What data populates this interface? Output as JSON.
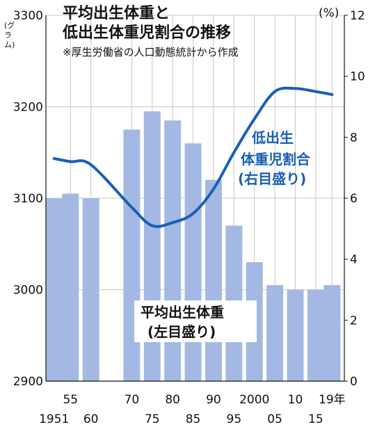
{
  "title": {
    "line1": "平均出生体重と",
    "line2": "低出生体重児割合の推移",
    "subtitle": "※厚生労働省の人口動態統計から作成"
  },
  "chart_data": {
    "type": "bar+line",
    "x_labels_top": [
      "55",
      "70",
      "80",
      "90",
      "2000",
      "10",
      "19年"
    ],
    "x_labels_bottom": [
      "1951",
      "60",
      "75",
      "85",
      "95",
      "05",
      "15"
    ],
    "left_axis": {
      "unit_label": "(グラム)",
      "ylim": [
        2900,
        3300
      ],
      "ticks": [
        "2900",
        "3000",
        "3100",
        "3200",
        "3300"
      ]
    },
    "right_axis": {
      "unit_label": "(%)",
      "ylim": [
        0,
        12
      ],
      "ticks": [
        "0",
        "2",
        "4",
        "6",
        "8",
        "10",
        "12"
      ]
    },
    "grid": true,
    "series": [
      {
        "name": "平均出生体重(左目盛り)",
        "type": "bar",
        "axis": "left",
        "color": "#a3b9e3",
        "points": [
          {
            "x": 1951,
            "y": 3100
          },
          {
            "x": 1955,
            "y": 3105
          },
          {
            "x": 1960,
            "y": 3100
          },
          {
            "x": 1970,
            "y": 3175
          },
          {
            "x": 1975,
            "y": 3195
          },
          {
            "x": 1980,
            "y": 3185
          },
          {
            "x": 1985,
            "y": 3160
          },
          {
            "x": 1990,
            "y": 3120
          },
          {
            "x": 1995,
            "y": 3070
          },
          {
            "x": 2000,
            "y": 3030
          },
          {
            "x": 2005,
            "y": 3005
          },
          {
            "x": 2010,
            "y": 3000
          },
          {
            "x": 2015,
            "y": 3000
          },
          {
            "x": 2019,
            "y": 3005
          }
        ]
      },
      {
        "name": "低出生体重児割合(右目盛り)",
        "type": "line",
        "axis": "right",
        "color": "#1a5fb4",
        "points": [
          {
            "x": 1951,
            "y": 7.3
          },
          {
            "x": 1955,
            "y": 7.2
          },
          {
            "x": 1960,
            "y": 7.1
          },
          {
            "x": 1970,
            "y": 5.7
          },
          {
            "x": 1975,
            "y": 5.1
          },
          {
            "x": 1980,
            "y": 5.2
          },
          {
            "x": 1985,
            "y": 5.5
          },
          {
            "x": 1990,
            "y": 6.3
          },
          {
            "x": 1995,
            "y": 7.5
          },
          {
            "x": 2000,
            "y": 8.6
          },
          {
            "x": 2005,
            "y": 9.5
          },
          {
            "x": 2010,
            "y": 9.6
          },
          {
            "x": 2015,
            "y": 9.5
          },
          {
            "x": 2019,
            "y": 9.4
          }
        ]
      }
    ],
    "annotations": {
      "line_label": [
        "低出生",
        "体重児割合",
        "(右目盛り)"
      ],
      "bar_label": [
        "平均出生体重",
        "(左目盛り)"
      ]
    }
  }
}
